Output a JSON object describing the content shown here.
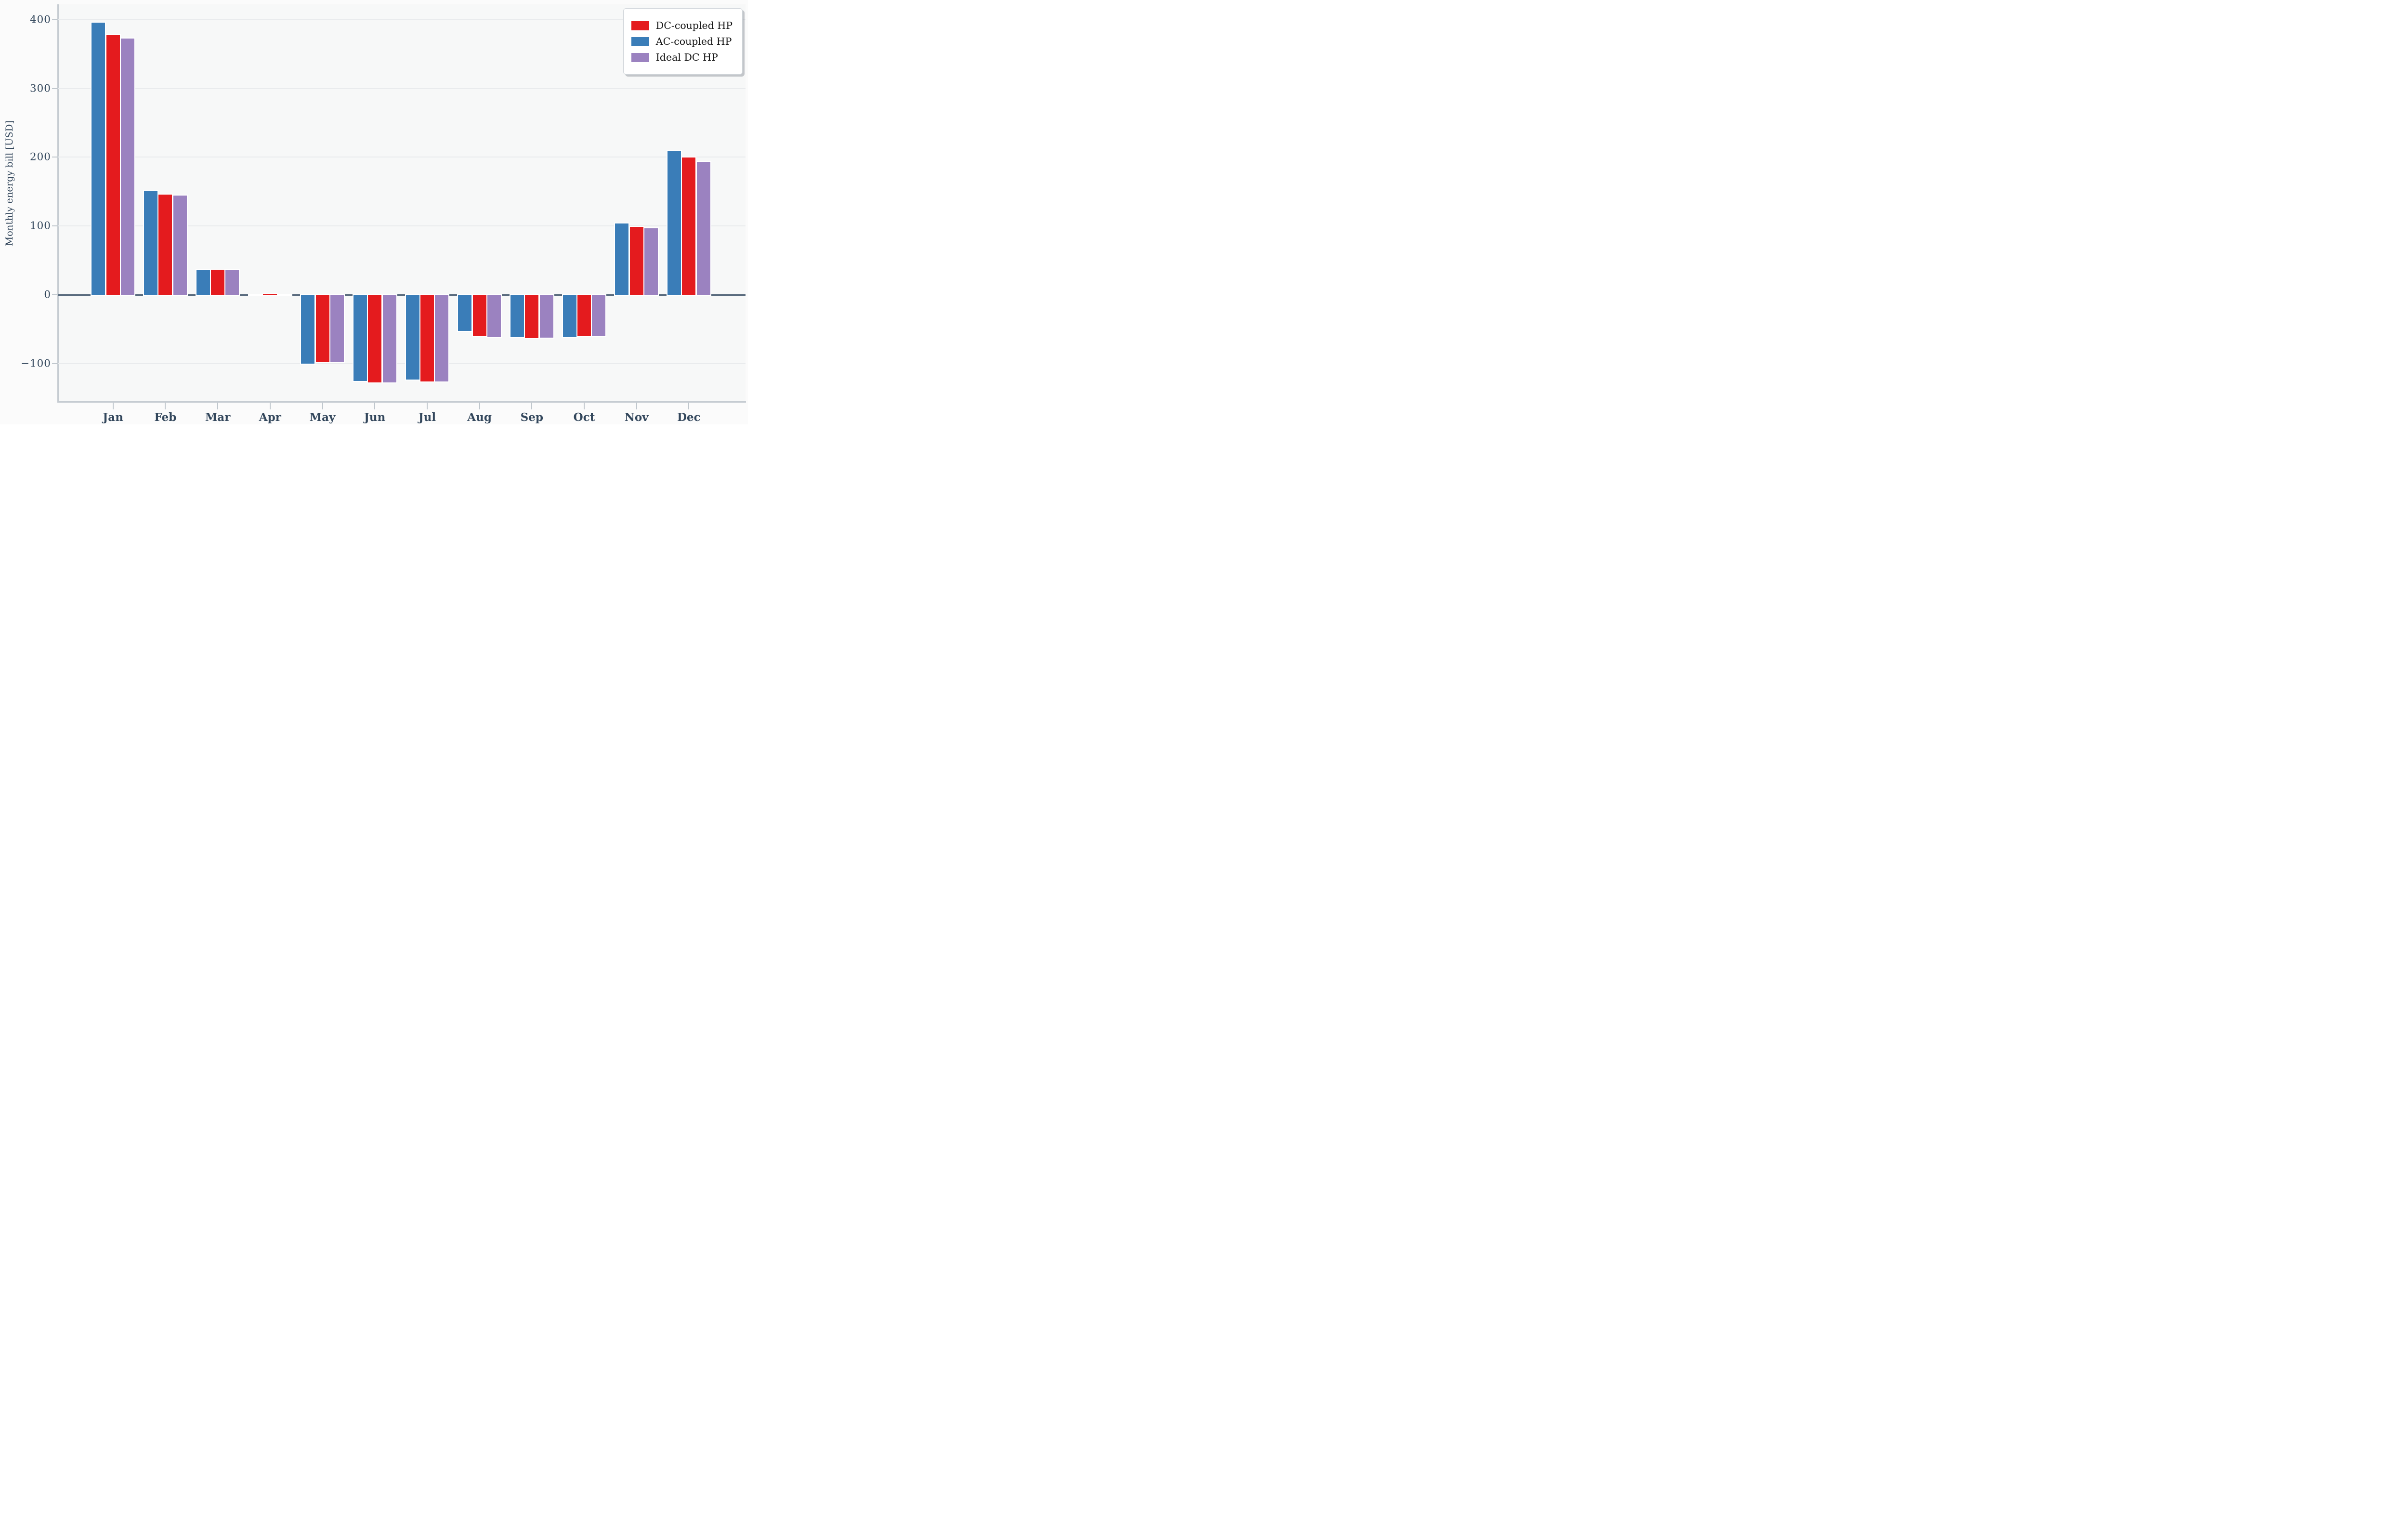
{
  "y_axis_title": "Monthly energy bill [USD]",
  "chart_data": {
    "type": "bar",
    "title": "",
    "xlabel": "",
    "ylabel": "Monthly energy bill [USD]",
    "categories": [
      "Jan",
      "Feb",
      "Mar",
      "Apr",
      "May",
      "Jun",
      "Jul",
      "Aug",
      "Sep",
      "Oct",
      "Nov",
      "Dec"
    ],
    "series": [
      {
        "name": "AC-coupled HP",
        "color": "#3a7db8",
        "values": [
          397,
          153,
          37,
          -1,
          -101,
          -126,
          -124,
          -53,
          -62,
          -62,
          105,
          211
        ]
      },
      {
        "name": "DC-coupled HP",
        "color": "#e41b1e",
        "values": [
          379,
          147,
          38,
          2,
          -99,
          -128,
          -127,
          -61,
          -64,
          -61,
          100,
          201
        ]
      },
      {
        "name": "Ideal DC HP",
        "color": "#9b82c0",
        "values": [
          374,
          146,
          37,
          1,
          -99,
          -128,
          -127,
          -62,
          -63,
          -61,
          98,
          195
        ]
      }
    ],
    "legend_order": [
      "DC-coupled HP",
      "AC-coupled HP",
      "Ideal DC HP"
    ],
    "legend_position": "upper right",
    "yticks": [
      400,
      300,
      200,
      100,
      0,
      -100
    ],
    "ylim": [
      -155,
      422
    ],
    "grid": true,
    "zero_line_color": "#56687b",
    "text_color": "#33475c"
  }
}
